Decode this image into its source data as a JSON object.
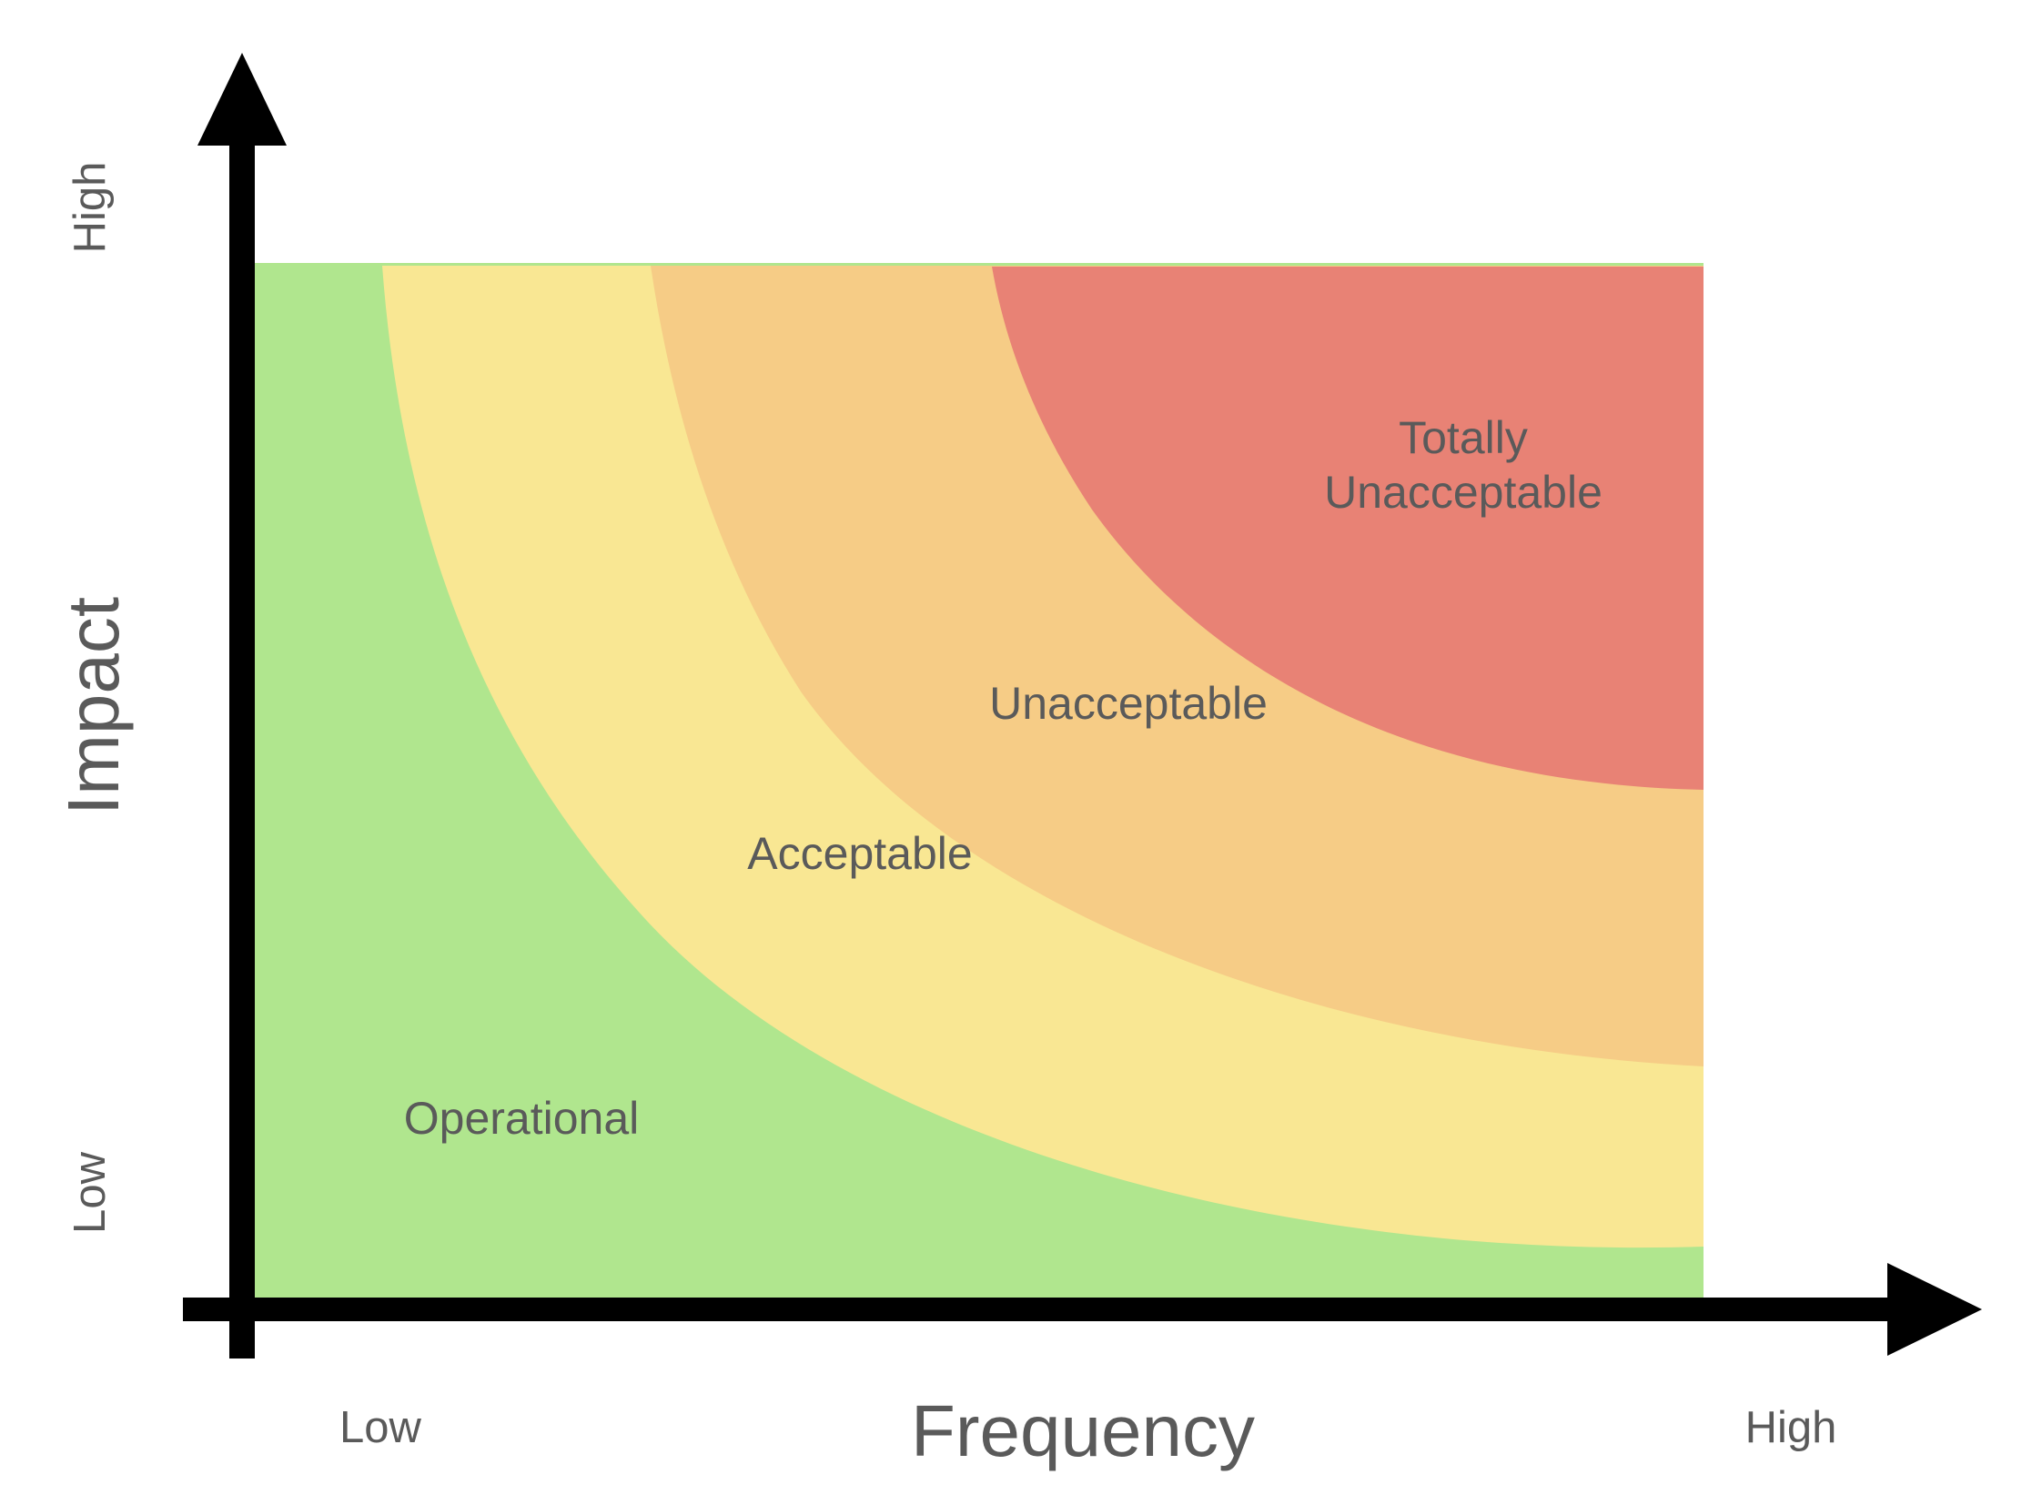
{
  "colors": {
    "operational": "#b0e68e",
    "acceptable": "#f9e793",
    "unacceptable": "#f6cc86",
    "totally_unacceptable": "#e88275",
    "axis": "#000000",
    "text": "#5a5a5a"
  },
  "zones": {
    "operational": "Operational",
    "acceptable": "Acceptable",
    "unacceptable": "Unacceptable",
    "totally_unacceptable_line1": "Totally",
    "totally_unacceptable_line2": "Unacceptable"
  },
  "axes": {
    "x_title": "Frequency",
    "x_low": "Low",
    "x_high": "High",
    "y_title": "Impact",
    "y_low": "Low",
    "y_high": "High"
  }
}
